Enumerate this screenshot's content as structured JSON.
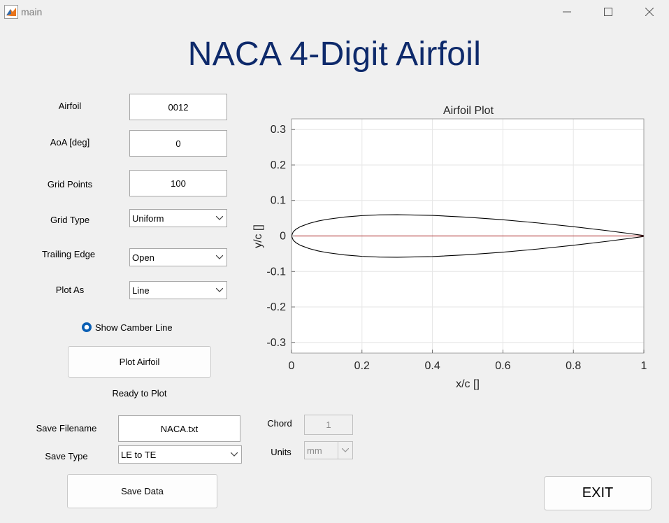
{
  "window": {
    "title": "main",
    "minimize_icon": "minimize-icon",
    "maximize_icon": "maximize-icon",
    "close_icon": "close-icon"
  },
  "heading": "NACA 4-Digit Airfoil",
  "form": {
    "airfoil": {
      "label": "Airfoil",
      "value": "0012"
    },
    "aoa": {
      "label": "AoA [deg]",
      "value": "0"
    },
    "grid_points": {
      "label": "Grid Points",
      "value": "100"
    },
    "grid_type": {
      "label": "Grid Type",
      "value": "Uniform"
    },
    "trailing_edge": {
      "label": "Trailing Edge",
      "value": "Open"
    },
    "plot_as": {
      "label": "Plot As",
      "value": "Line"
    },
    "camber": {
      "label": "Show Camber Line",
      "checked": true
    },
    "plot_button": "Plot Airfoil",
    "status": "Ready to Plot"
  },
  "save": {
    "filename_label": "Save Filename",
    "filename": "NACA.txt",
    "type_label": "Save Type",
    "type_value": "LE to TE",
    "chord_label": "Chord",
    "chord_value": "1",
    "units_label": "Units",
    "units_value": "mm",
    "save_button": "Save Data"
  },
  "exit_button": "EXIT",
  "chart_data": {
    "type": "line",
    "title": "Airfoil Plot",
    "xlabel": "x/c []",
    "ylabel": "y/c []",
    "xlim": [
      0,
      1
    ],
    "ylim": [
      -0.33,
      0.33
    ],
    "xticks": [
      "0",
      "0.2",
      "0.4",
      "0.6",
      "0.8",
      "1"
    ],
    "yticks": [
      "0.3",
      "0.2",
      "0.1",
      "0",
      "-0.1",
      "-0.2",
      "-0.3"
    ],
    "grid": true,
    "naca_thickness": 0.12,
    "series": [
      {
        "color": "#000000",
        "x": [
          1,
          0.95,
          0.9,
          0.8,
          0.7,
          0.6,
          0.5,
          0.4,
          0.3,
          0.25,
          0.2,
          0.15,
          0.1,
          0.075,
          0.05,
          0.025,
          0.0125,
          0.005,
          0,
          0.005,
          0.0125,
          0.025,
          0.05,
          0.075,
          0.1,
          0.15,
          0.2,
          0.25,
          0.3,
          0.4,
          0.5,
          0.6,
          0.7,
          0.8,
          0.9,
          0.95,
          1
        ],
        "y": [
          0.0013,
          0.0081,
          0.0145,
          0.0262,
          0.0367,
          0.0457,
          0.0529,
          0.058,
          0.06,
          0.0594,
          0.0574,
          0.0534,
          0.0468,
          0.042,
          0.0355,
          0.0262,
          0.0189,
          0.0121,
          0,
          -0.0121,
          -0.0189,
          -0.0262,
          -0.0355,
          -0.042,
          -0.0468,
          -0.0534,
          -0.0574,
          -0.0594,
          -0.06,
          -0.058,
          -0.0529,
          -0.0457,
          -0.0367,
          -0.0262,
          -0.0145,
          -0.0081,
          -0.0013
        ]
      },
      {
        "color": "#a01010",
        "x": [
          0,
          1
        ],
        "y": [
          0,
          0
        ]
      }
    ]
  }
}
